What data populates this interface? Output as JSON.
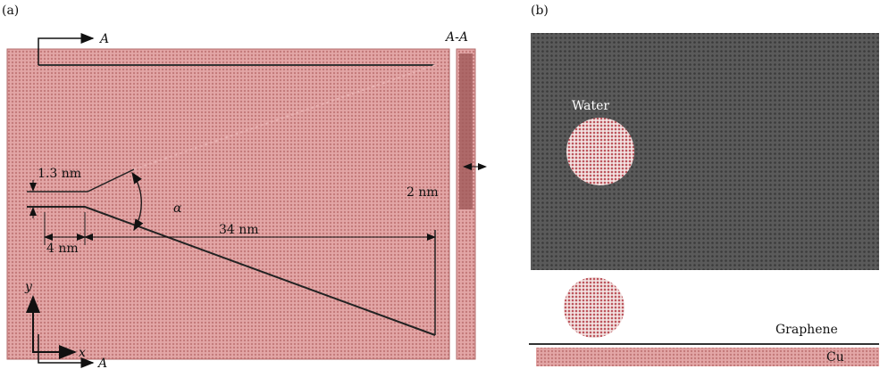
{
  "panel_a": {
    "label": "(a)",
    "section_marks": [
      "A",
      "A"
    ],
    "section_title": "A-A",
    "dimensions": {
      "gap": "1.3 nm",
      "thickness": "2 nm",
      "angle": "α",
      "length": "34 nm",
      "inlet": "4 nm"
    },
    "axes": {
      "y": "y",
      "x": "x"
    }
  },
  "panel_b": {
    "label": "(b)",
    "water": "Water",
    "graphene": "Graphene",
    "substrate": "Cu"
  }
}
